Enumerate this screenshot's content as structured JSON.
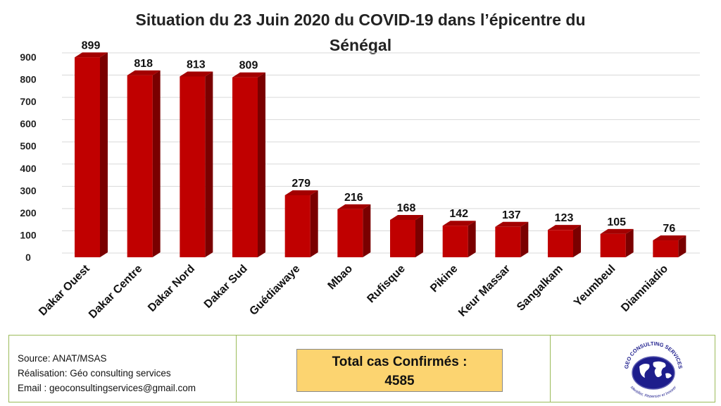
{
  "chart_data": {
    "type": "bar",
    "title_line1": "Situation du 23 Juin 2020 du COVID-19 dans l’épicentre du",
    "title_line2": "Sénégal",
    "categories": [
      "Dakar Ouest",
      "Dakar Centre",
      "Dakar Nord",
      "Dakar Sud",
      "Guédiawaye",
      "Mbao",
      "Rufisque",
      "Pikine",
      "Keur Massar",
      "Sangalkam",
      "Yeumbeul",
      "Diamniadio"
    ],
    "values": [
      899,
      818,
      813,
      809,
      279,
      216,
      168,
      142,
      137,
      123,
      105,
      76
    ],
    "ylim": [
      0,
      900
    ],
    "yticks": [
      "0",
      "100",
      "200",
      "300",
      "400",
      "500",
      "600",
      "700",
      "800",
      "900"
    ],
    "grid": true,
    "style": "3d-column",
    "bar_color": "#c00000",
    "bar_top_color": "#a30000",
    "bar_side_color": "#7a0000"
  },
  "footer": {
    "source": "Source: ANAT/MSAS",
    "realisation": "Réalisation: Géo consulting services",
    "email": "Email : geoconsultingservices@gmail.com",
    "total_label": "Total cas Confirmés :",
    "total_value": "4585",
    "logo_top_text": "GEO CONSULTING SERVICES",
    "logo_bottom_text": "Identifier, Repenser et Innover",
    "logo_icon": "globe-icon"
  }
}
